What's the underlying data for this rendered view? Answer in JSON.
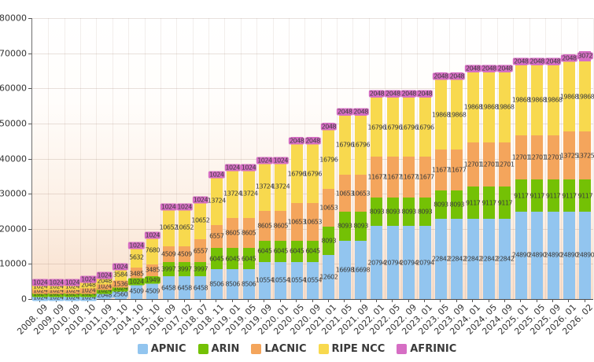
{
  "chart_data": {
    "type": "bar",
    "stacked": true,
    "title": "",
    "xlabel": "",
    "ylabel": "",
    "ylim": [
      0,
      80000
    ],
    "ytick_interval": 10000,
    "ytick_labels": [
      "0",
      "10000",
      "20000",
      "30000",
      "40000",
      "50000",
      "60000",
      "70000",
      "80000"
    ],
    "grid": true,
    "legend_position": "bottom",
    "categories": [
      "2008. 09",
      "2009. 09",
      "2010. 09",
      "2010. 10",
      "2011. 09",
      "2013. 10",
      "2014. 10",
      "2015. 10",
      "2016. 09",
      "2017. 02",
      "2018. 07",
      "2018. 11",
      "2019. 01",
      "2019. 05",
      "2019. 09",
      "2020. 01",
      "2020. 05",
      "2020. 09",
      "2021. 01",
      "2021. 05",
      "2021. 09",
      "2022. 01",
      "2022. 05",
      "2022. 09",
      "2023. 01",
      "2023. 05",
      "2023. 09",
      "2024. 01",
      "2024. 05",
      "2024. 09",
      "2025. 01",
      "2025. 05",
      "2025. 09",
      "2026. 01",
      "2026. 02"
    ],
    "series": [
      {
        "name": "APNIC",
        "color": "#92c5ef",
        "values": [
          1024,
          1024,
          1024,
          1024,
          2048,
          2560,
          4509,
          4509,
          6458,
          6458,
          6458,
          8506,
          8506,
          8506,
          10554,
          10554,
          10554,
          10554,
          12602,
          16698,
          16698,
          20794,
          20794,
          20794,
          20794,
          22842,
          22842,
          22842,
          22842,
          22842,
          24890,
          24890,
          24890,
          24890,
          24890
        ]
      },
      {
        "name": "ARIN",
        "color": "#74c105",
        "values": [
          1024,
          1024,
          1024,
          1024,
          1024,
          1024,
          1024,
          1949,
          3997,
          3997,
          3997,
          6045,
          6045,
          6045,
          6045,
          6045,
          6045,
          6045,
          8093,
          8093,
          8093,
          8093,
          8093,
          8093,
          8093,
          8093,
          8093,
          9117,
          9117,
          9117,
          9117,
          9117,
          9117,
          9117,
          9117
        ]
      },
      {
        "name": "LACNIC",
        "color": "#f4a55c",
        "values": [
          1024,
          1024,
          1024,
          1024,
          1024,
          1536,
          3485,
          3485,
          4509,
          4509,
          6557,
          6557,
          8605,
          8605,
          8605,
          8605,
          10653,
          10653,
          10653,
          10653,
          10653,
          11677,
          11677,
          11677,
          11677,
          11677,
          11677,
          12701,
          12701,
          12701,
          12701,
          12701,
          12701,
          13725,
          13725
        ]
      },
      {
        "name": "RIPE NCC",
        "color": "#f8d94e",
        "values": [
          1024,
          1024,
          1024,
          2048,
          2048,
          3584,
          5632,
          7680,
          10652,
          10652,
          10652,
          13724,
          13724,
          13724,
          13724,
          13724,
          16796,
          16796,
          16796,
          16796,
          16796,
          16796,
          16796,
          16796,
          16796,
          19868,
          19868,
          19868,
          19868,
          19868,
          19868,
          19868,
          19868,
          19868,
          19868
        ]
      },
      {
        "name": "AFRINIC",
        "color": "#d66ec4",
        "values": [
          1024,
          1024,
          1024,
          1024,
          1024,
          1024,
          1024,
          1024,
          1024,
          1024,
          1024,
          1024,
          1024,
          1024,
          1024,
          1024,
          2048,
          2048,
          2048,
          2048,
          2048,
          2048,
          2048,
          2048,
          2048,
          2048,
          2048,
          2048,
          2048,
          2048,
          2048,
          2048,
          2048,
          2048,
          3072
        ]
      }
    ]
  },
  "legend": {
    "items": [
      {
        "label": "APNIC",
        "color": "#92c5ef"
      },
      {
        "label": "ARIN",
        "color": "#74c105"
      },
      {
        "label": "LACNIC",
        "color": "#f4a55c"
      },
      {
        "label": "RIPE NCC",
        "color": "#f8d94e"
      },
      {
        "label": "AFRINIC",
        "color": "#d66ec4"
      }
    ]
  }
}
